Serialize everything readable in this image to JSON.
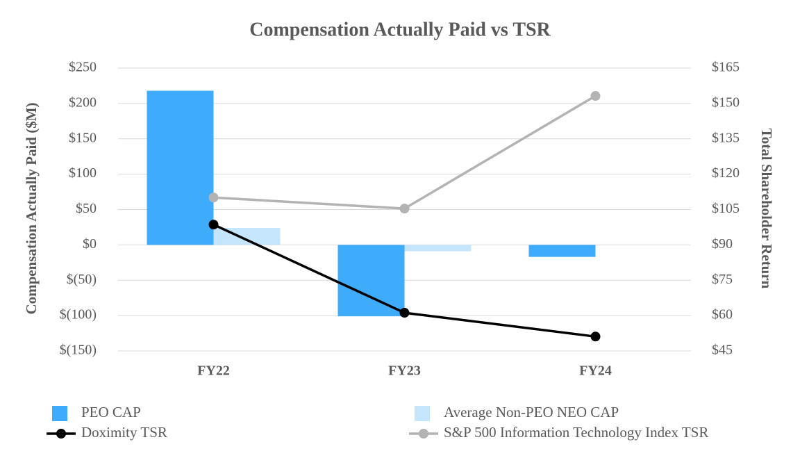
{
  "chart_data": {
    "type": "bar",
    "title": "Compensation Actually Paid vs TSR",
    "ylabel": "Compensation Actually Paid ($M)",
    "y2label": "Total Shareholder Return",
    "categories": [
      "FY22",
      "FY23",
      "FY24"
    ],
    "series": [
      {
        "name": "PEO CAP",
        "color": "#3fabfb",
        "values": [
          218,
          -101,
          -17
        ]
      },
      {
        "name": "Average Non-PEO NEO CAP",
        "color": "#c5e5fd",
        "values": [
          24,
          -9,
          0
        ]
      },
      {
        "name": "Doximity TSR",
        "color": "#000000",
        "type": "line",
        "axis": "y2",
        "values": [
          98.6,
          61.2,
          51.1
        ]
      },
      {
        "name": "S&P 500 Information Technology Index TSR",
        "color": "#b3b3b3",
        "type": "line",
        "axis": "y2",
        "values": [
          110.1,
          105.4,
          153.2
        ]
      }
    ],
    "ylim": [
      -150,
      250
    ],
    "yticks": [
      {
        "value": -150,
        "label": "$(150)"
      },
      {
        "value": -100,
        "label": "$(100)"
      },
      {
        "value": -50,
        "label": "$(50)"
      },
      {
        "value": 0,
        "label": "$0"
      },
      {
        "value": 50,
        "label": "$50"
      },
      {
        "value": 100,
        "label": "$100"
      },
      {
        "value": 150,
        "label": "$150"
      },
      {
        "value": 200,
        "label": "$200"
      },
      {
        "value": 250,
        "label": "$250"
      }
    ],
    "y2lim": [
      45,
      165
    ],
    "y2ticks": [
      {
        "value": 45,
        "label": "$45"
      },
      {
        "value": 60,
        "label": "$60"
      },
      {
        "value": 75,
        "label": "$75"
      },
      {
        "value": 90,
        "label": "$90"
      },
      {
        "value": 105,
        "label": "$105"
      },
      {
        "value": 120,
        "label": "$120"
      },
      {
        "value": 135,
        "label": "$135"
      },
      {
        "value": 150,
        "label": "$150"
      },
      {
        "value": 165,
        "label": "$165"
      }
    ],
    "grid": true,
    "legend": "bottom"
  }
}
